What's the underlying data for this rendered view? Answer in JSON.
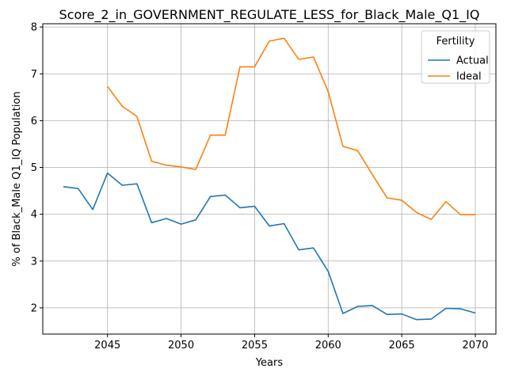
{
  "chart_data": {
    "type": "line",
    "title": "Score_2_in_GOVERNMENT_REGULATE_LESS_for_Black_Male_Q1_IQ",
    "xlabel": "Years",
    "ylabel": "% of Black_Male Q1_IQ Population",
    "xlim": [
      2040.6,
      2071.4
    ],
    "ylim": [
      1.44,
      8.07
    ],
    "xticks": [
      2045,
      2050,
      2055,
      2060,
      2065,
      2070
    ],
    "yticks": [
      2,
      3,
      4,
      5,
      6,
      7,
      8
    ],
    "grid": true,
    "legend": {
      "title": "Fertility",
      "placement": "top-right"
    },
    "series": [
      {
        "name": "Actual",
        "color": "#1f77b4",
        "x": [
          2042,
          2043,
          2044,
          2045,
          2046,
          2047,
          2048,
          2049,
          2050,
          2051,
          2052,
          2053,
          2054,
          2055,
          2056,
          2057,
          2058,
          2059,
          2060,
          2061,
          2062,
          2063,
          2064,
          2065,
          2066,
          2067,
          2068,
          2069,
          2070
        ],
        "y": [
          4.59,
          4.55,
          4.1,
          4.88,
          4.62,
          4.65,
          3.82,
          3.91,
          3.79,
          3.88,
          4.38,
          4.41,
          4.14,
          4.17,
          3.75,
          3.8,
          3.24,
          3.28,
          2.78,
          1.88,
          2.03,
          2.05,
          1.86,
          1.87,
          1.75,
          1.76,
          1.99,
          1.98,
          1.89
        ]
      },
      {
        "name": "Ideal",
        "color": "#ff7f0e",
        "x": [
          2045,
          2046,
          2047,
          2048,
          2049,
          2050,
          2051,
          2052,
          2053,
          2054,
          2055,
          2056,
          2057,
          2058,
          2059,
          2060,
          2061,
          2062,
          2063,
          2064,
          2065,
          2066,
          2067,
          2068,
          2069,
          2070
        ],
        "y": [
          6.73,
          6.31,
          6.09,
          5.13,
          5.05,
          5.01,
          4.96,
          5.69,
          5.69,
          7.15,
          7.15,
          7.7,
          7.76,
          7.31,
          7.36,
          6.62,
          5.45,
          5.36,
          4.85,
          4.35,
          4.3,
          4.04,
          3.89,
          4.27,
          3.99,
          3.99
        ]
      }
    ]
  }
}
